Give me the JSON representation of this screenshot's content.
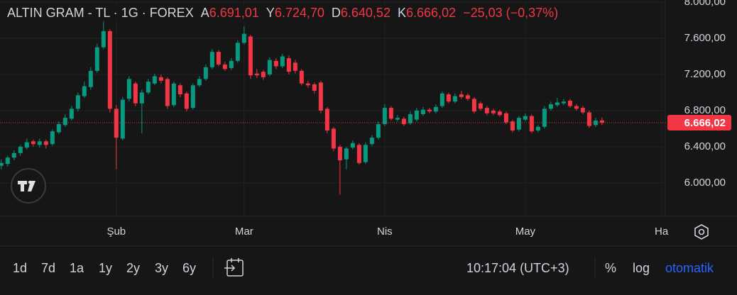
{
  "chart_data": {
    "type": "candlestick",
    "title": "ALTIN GRAM - TL · 1G · FOREX",
    "header_values": [
      {
        "label": "A",
        "text": "6.691,01"
      },
      {
        "label": "Y",
        "text": "6.724,70"
      },
      {
        "label": "D",
        "text": "6.640,52"
      },
      {
        "label": "K",
        "text": "6.666,02"
      }
    ],
    "change_label": "−25,03 (−0,37%)",
    "last_price_label": "6.666,02",
    "up_color": "#089981",
    "down_color": "#f23645",
    "open": [
      6190,
      6210,
      6280,
      6330,
      6390,
      6460,
      6420,
      6460,
      6430,
      6560,
      6640,
      6710,
      6820,
      6960,
      7060,
      7240,
      7500,
      7680,
      6820,
      6490,
      6930,
      7100,
      6880,
      7000,
      7100,
      7170,
      7150,
      6860,
      7080,
      6990,
      6830,
      7080,
      7150,
      7280,
      7450,
      7310,
      7270,
      7350,
      7550,
      7620,
      7210,
      7230,
      7200,
      7350,
      7290,
      7380,
      7330,
      7240,
      7100,
      7090,
      7110,
      6820,
      6600,
      6400,
      6260,
      6390,
      6420,
      6230,
      6430,
      6500,
      6650,
      6830,
      6700,
      6710,
      6660,
      6700,
      6760,
      6810,
      6790,
      6850,
      6980,
      6900,
      6980,
      6970,
      6930,
      6880,
      6830,
      6800,
      6790,
      6770,
      6680,
      6590,
      6700,
      6740,
      6580,
      6620,
      6820,
      6860,
      6880,
      6910,
      6850,
      6830,
      6780,
      6640,
      6691.01
    ],
    "high": [
      6260,
      6300,
      6360,
      6420,
      6490,
      6480,
      6490,
      6480,
      6590,
      6680,
      6760,
      6850,
      7000,
      7120,
      7280,
      7540,
      7790,
      7700,
      6860,
      6950,
      7180,
      7120,
      7030,
      7150,
      7210,
      7200,
      7170,
      7120,
      7100,
      7010,
      7100,
      7180,
      7310,
      7480,
      7470,
      7340,
      7380,
      7580,
      7730,
      7640,
      7260,
      7250,
      7390,
      7380,
      7430,
      7410,
      7360,
      7260,
      7130,
      7110,
      7130,
      6840,
      6620,
      6420,
      6400,
      6470,
      6440,
      6450,
      6530,
      6680,
      6870,
      6850,
      6750,
      6730,
      6790,
      6830,
      6840,
      6830,
      6870,
      7010,
      7000,
      6990,
      7020,
      6990,
      6950,
      6900,
      6850,
      6820,
      6810,
      6790,
      6700,
      6740,
      6770,
      6760,
      6640,
      6850,
      6900,
      6940,
      6930,
      6930,
      6870,
      6850,
      6800,
      6720,
      6724.7
    ],
    "low": [
      6150,
      6180,
      6250,
      6300,
      6370,
      6400,
      6390,
      6380,
      6410,
      6540,
      6620,
      6690,
      6790,
      6940,
      7030,
      7220,
      7480,
      6780,
      6150,
      6470,
      6900,
      6850,
      6550,
      6980,
      7080,
      7100,
      6820,
      6840,
      6950,
      6790,
      6810,
      7060,
      7130,
      7260,
      7290,
      7240,
      7250,
      7330,
      7530,
      7150,
      7160,
      7140,
      7180,
      7260,
      7270,
      7200,
      7210,
      7080,
      7050,
      6990,
      6770,
      6550,
      6350,
      5870,
      6150,
      6370,
      6200,
      6210,
      6410,
      6480,
      6630,
      6690,
      6680,
      6630,
      6640,
      6680,
      6740,
      6770,
      6770,
      6830,
      6880,
      6880,
      6930,
      6910,
      6770,
      6800,
      6750,
      6750,
      6730,
      6650,
      6560,
      6570,
      6680,
      6550,
      6560,
      6600,
      6800,
      6840,
      6860,
      6830,
      6800,
      6760,
      6610,
      6620,
      6640.52
    ],
    "close": [
      6220,
      6280,
      6330,
      6400,
      6450,
      6430,
      6460,
      6420,
      6570,
      6650,
      6720,
      6820,
      6970,
      7070,
      7240,
      7500,
      7680,
      6820,
      6500,
      6920,
      7150,
      6880,
      7000,
      7120,
      7180,
      7130,
      6850,
      7100,
      6980,
      6820,
      7080,
      7150,
      7280,
      7450,
      7310,
      7260,
      7350,
      7550,
      7650,
      7190,
      7190,
      7170,
      7360,
      7290,
      7400,
      7230,
      7240,
      7100,
      7080,
      7020,
      6800,
      6580,
      6380,
      6250,
      6380,
      6440,
      6220,
      6420,
      6500,
      6650,
      6830,
      6710,
      6720,
      6650,
      6760,
      6800,
      6810,
      6790,
      6840,
      6990,
      6900,
      6960,
      6950,
      6930,
      6790,
      6820,
      6770,
      6770,
      6750,
      6670,
      6580,
      6720,
      6740,
      6570,
      6620,
      6820,
      6870,
      6890,
      6900,
      6850,
      6820,
      6780,
      6630,
      6690,
      6666.02
    ],
    "xlim": [
      -0.2,
      103.9
    ],
    "xticks": [
      {
        "value": 18,
        "label": "Şub"
      },
      {
        "value": 38,
        "label": "Mar"
      },
      {
        "value": 60,
        "label": "Nis"
      },
      {
        "value": 82,
        "label": "May"
      },
      {
        "value": 103.3,
        "label": "Ha"
      }
    ],
    "ylim": [
      5630,
      8024
    ],
    "yticks": [
      {
        "value": 6000,
        "label": "6.000,00"
      },
      {
        "value": 6400,
        "label": "6.400,00"
      },
      {
        "value": 6800,
        "label": "6.800,00"
      },
      {
        "value": 7200,
        "label": "7.200,00"
      },
      {
        "value": 7600,
        "label": "7.600,00"
      },
      {
        "value": 8000,
        "label": "8.000,00"
      }
    ],
    "grid": true
  },
  "toolbar": {
    "ranges": [
      "1d",
      "7d",
      "1a",
      "1y",
      "2y",
      "3y",
      "6y"
    ],
    "time": "10:17:04 (UTC+3)",
    "percent": "%",
    "log": "log",
    "auto": "otomatik"
  }
}
